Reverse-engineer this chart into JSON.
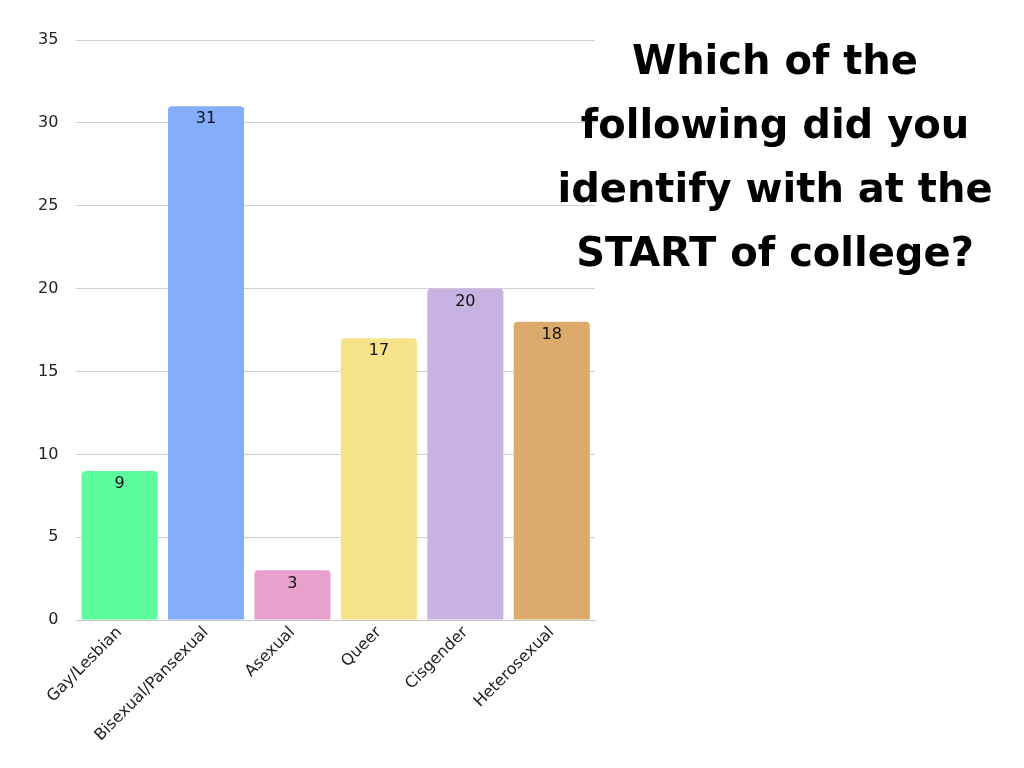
{
  "chart_data": {
    "type": "bar",
    "title": "Which of the following did you identify with at the START of college?",
    "categories": [
      "Gay/Lesbian",
      "Bisexual/Pansexual",
      "Asexual",
      "Queer",
      "Cisgender",
      "Heterosexual"
    ],
    "values": [
      9,
      31,
      3,
      17,
      20,
      18
    ],
    "colors": [
      "#5cfd9b",
      "#84aefa",
      "#e8a0cc",
      "#f5e28a",
      "#c8b2e2",
      "#dcab6b"
    ],
    "ylim": [
      0,
      35
    ],
    "yticks": [
      0,
      5,
      10,
      15,
      20,
      25,
      30,
      35
    ],
    "grid": "y",
    "legend": false,
    "data_labels": true
  }
}
